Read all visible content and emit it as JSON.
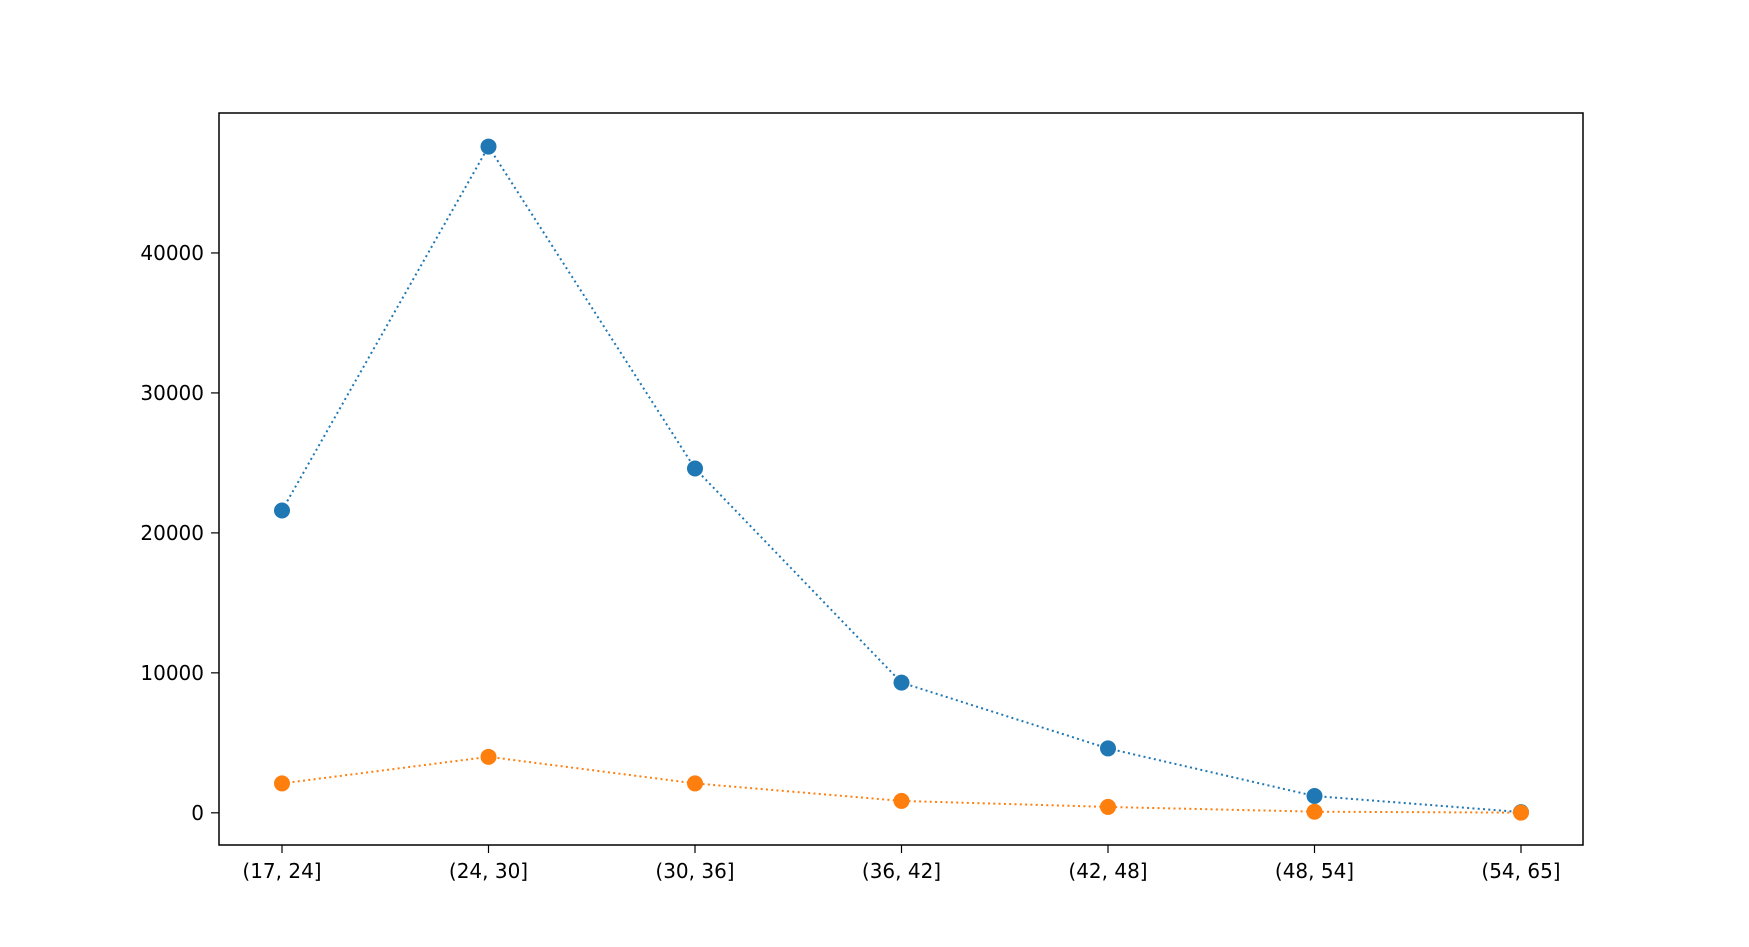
{
  "chart_data": {
    "type": "line",
    "title": "",
    "xlabel": "",
    "ylabel": "",
    "categories": [
      "(17, 24]",
      "(24, 30]",
      "(30, 36]",
      "(36, 42]",
      "(42, 48]",
      "(48, 54]",
      "(54, 65]"
    ],
    "series": [
      {
        "values": [
          21600,
          47600,
          24600,
          9300,
          4600,
          1200,
          50
        ],
        "color": "#1f77b4",
        "line_style": "dotted",
        "marker": "circle"
      },
      {
        "values": [
          2100,
          4000,
          2100,
          850,
          420,
          80,
          10
        ],
        "color": "#ff7f0e",
        "line_style": "dotted",
        "marker": "circle"
      }
    ],
    "y_ticks": [
      0,
      10000,
      20000,
      30000,
      40000
    ],
    "ylim": [
      -2300,
      50000
    ],
    "grid": false,
    "legend": "none"
  }
}
